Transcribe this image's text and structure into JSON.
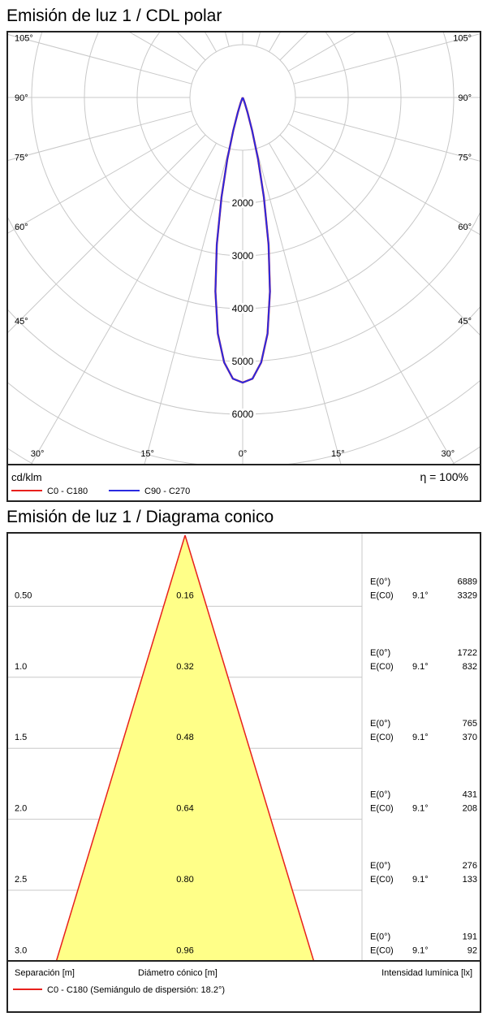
{
  "polar": {
    "title": "Emisión de luz 1 / CDL polar",
    "unit": "cd/klm",
    "efficiency": "η = 100%",
    "angle_labels": {
      "left": [
        "105°",
        "90°",
        "75°",
        "60°",
        "45°",
        "30°"
      ],
      "right": [
        "105°",
        "90°",
        "75°",
        "60°",
        "45°",
        "30°"
      ],
      "bottom": [
        "30°",
        "15°",
        "0°",
        "15°",
        "30°"
      ]
    },
    "legend": [
      {
        "label": "C0 - C180",
        "color": "#e8201c"
      },
      {
        "label": "C90 - C270",
        "color": "#2a2ae0"
      }
    ]
  },
  "cone": {
    "title": "Emisión de luz 1 / Diagrama conico",
    "footer": {
      "separation_label": "Separación [m]",
      "diameter_label": "Diámetro cónico [m]",
      "intensity_label": "Intensidad lumínica [lx]",
      "legend_label": "C0 - C180 (Semiángulo de dispersión: 18.2°)",
      "legend_color": "#e8201c"
    }
  },
  "chart_data": [
    {
      "type": "polar",
      "title": "Emisión de luz 1 / CDL polar",
      "radial_ticks": [
        2000,
        3000,
        4000,
        5000,
        6000
      ],
      "radial_max": 7000,
      "angle_ticks_deg": [
        0,
        15,
        30,
        45,
        60,
        75,
        90,
        105
      ],
      "series": [
        {
          "name": "C0 - C180",
          "color": "#e8201c",
          "points": [
            [
              0,
              5400
            ],
            [
              2,
              5330
            ],
            [
              4,
              5030
            ],
            [
              6,
              4500
            ],
            [
              8,
              3710
            ],
            [
              10,
              2830
            ],
            [
              12,
              1930
            ],
            [
              14,
              1200
            ],
            [
              16,
              650
            ],
            [
              18,
              300
            ],
            [
              20,
              120
            ],
            [
              22,
              40
            ],
            [
              25,
              0
            ]
          ]
        },
        {
          "name": "C90 - C270",
          "color": "#2a2ae0",
          "points": [
            [
              0,
              5400
            ],
            [
              2,
              5330
            ],
            [
              4,
              5030
            ],
            [
              6,
              4500
            ],
            [
              8,
              3710
            ],
            [
              10,
              2830
            ],
            [
              12,
              1930
            ],
            [
              14,
              1200
            ],
            [
              16,
              650
            ],
            [
              18,
              300
            ],
            [
              20,
              120
            ],
            [
              22,
              40
            ],
            [
              25,
              0
            ]
          ]
        }
      ]
    },
    {
      "type": "cone",
      "title": "Emisión de luz 1 / Diagrama conico",
      "half_angle_deg": 18.2,
      "rows": [
        {
          "distance": "0.50",
          "diameter": "0.16",
          "e0_label": "E(0°)",
          "e0": "6889",
          "ec0_label": "E(C0)",
          "angle": "9.1°",
          "ec0": "3329"
        },
        {
          "distance": "1.0",
          "diameter": "0.32",
          "e0_label": "E(0°)",
          "e0": "1722",
          "ec0_label": "E(C0)",
          "angle": "9.1°",
          "ec0": "832"
        },
        {
          "distance": "1.5",
          "diameter": "0.48",
          "e0_label": "E(0°)",
          "e0": "765",
          "ec0_label": "E(C0)",
          "angle": "9.1°",
          "ec0": "370"
        },
        {
          "distance": "2.0",
          "diameter": "0.64",
          "e0_label": "E(0°)",
          "e0": "431",
          "ec0_label": "E(C0)",
          "angle": "9.1°",
          "ec0": "208"
        },
        {
          "distance": "2.5",
          "diameter": "0.80",
          "e0_label": "E(0°)",
          "e0": "276",
          "ec0_label": "E(C0)",
          "angle": "9.1°",
          "ec0": "133"
        },
        {
          "distance": "3.0",
          "diameter": "0.96",
          "e0_label": "E(0°)",
          "e0": "191",
          "ec0_label": "E(C0)",
          "angle": "9.1°",
          "ec0": "92"
        }
      ]
    }
  ]
}
